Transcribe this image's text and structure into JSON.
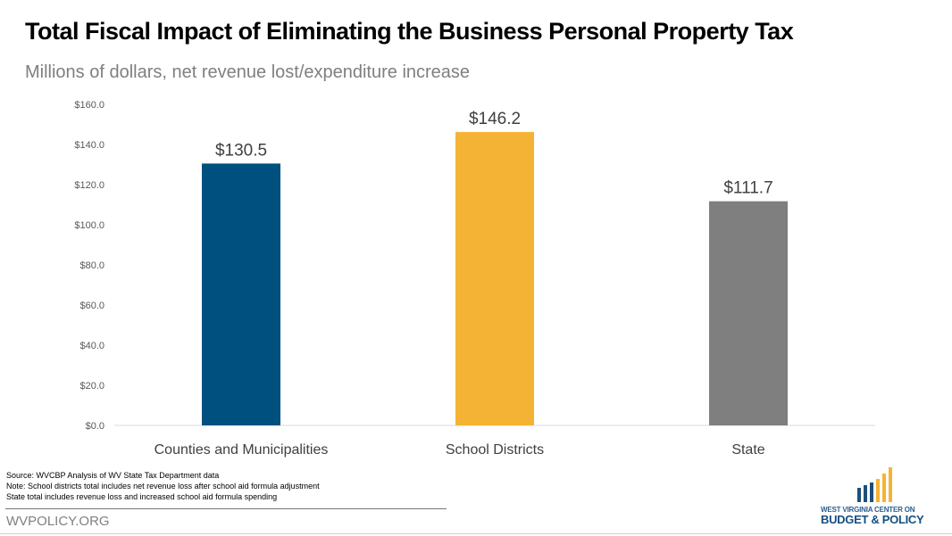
{
  "title": "Total Fiscal Impact of Eliminating the Business Personal Property Tax",
  "subtitle": "Millions of dollars, net revenue lost/expenditure increase",
  "chart_data": {
    "type": "bar",
    "categories": [
      "Counties and Municipalities",
      "School Districts",
      "State"
    ],
    "values": [
      130.5,
      146.2,
      111.7
    ],
    "data_labels": [
      "$130.5",
      "$146.2",
      "$111.7"
    ],
    "colors": [
      "#00507f",
      "#f5b335",
      "#7f7f7f"
    ],
    "ylim": [
      0,
      160
    ],
    "yticks": [
      "$0.0",
      "$20.0",
      "$40.0",
      "$60.0",
      "$80.0",
      "$100.0",
      "$120.0",
      "$140.0",
      "$160.0"
    ],
    "grid": false
  },
  "footer": {
    "notes": [
      "Source: WVCBP Analysis of WV State Tax Department data",
      "Note: School districts total includes net revenue loss after school aid formula adjustment",
      "State total includes revenue loss and increased school aid formula spending"
    ],
    "site": "WVPOLICY.ORG"
  },
  "logo": {
    "line1": "WEST VIRGINIA CENTER ON",
    "line2": "BUDGET & POLICY"
  }
}
